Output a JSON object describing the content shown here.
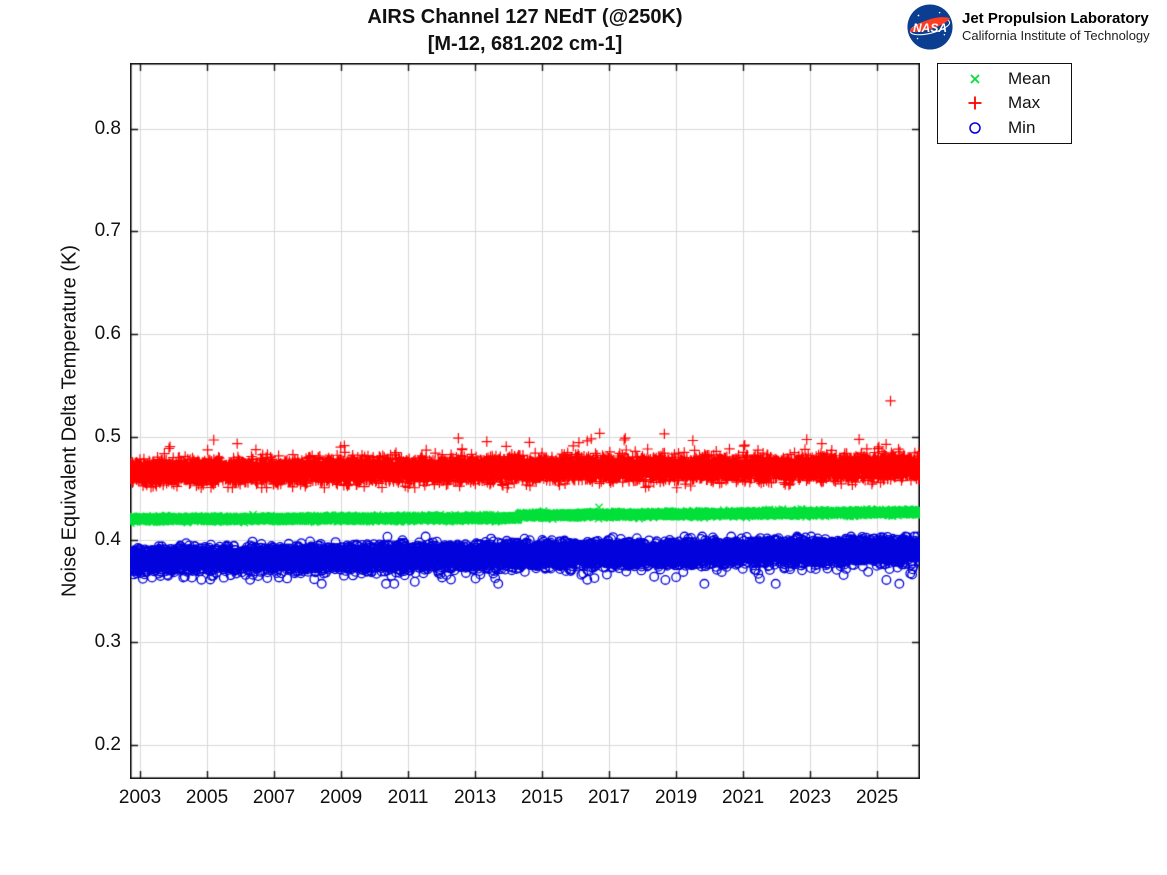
{
  "header": {
    "logo": {
      "nasa_label": "NASA",
      "org_name": "Jet Propulsion Laboratory",
      "org_sub": "California Institute of Technology",
      "meatball_blue": "#0B3D91",
      "swoosh_red": "#FC3D21"
    }
  },
  "chart_data": {
    "type": "scatter",
    "title": "AIRS Channel 127 NEdT (@250K)",
    "subtitle": "[M-12, 681.202 cm-1]",
    "xlabel": "",
    "ylabel": "Noise Equivalent Delta Temperature (K)",
    "xlim": [
      2002.7,
      2026.28
    ],
    "ylim": [
      0.167,
      0.864
    ],
    "x_ticks": [
      2003,
      2005,
      2007,
      2009,
      2011,
      2013,
      2015,
      2017,
      2019,
      2021,
      2023,
      2025
    ],
    "y_ticks": [
      0.2,
      0.3,
      0.4,
      0.5,
      0.6,
      0.7,
      0.8
    ],
    "y_tick_decimals": 1,
    "grid": true,
    "grid_color": "#D9D9D9",
    "axis_color": "#111111",
    "tick_length": 7,
    "legend": {
      "position": "outside-top-right"
    },
    "points_per_year": 365,
    "seed": 42,
    "series": [
      {
        "name": "Mean",
        "marker": "x",
        "color": "#00E038",
        "marker_size": 3.6,
        "line_width": 1.3,
        "model": {
          "segments": [
            {
              "from": 2002.7,
              "to": 2014.3,
              "base": 0.4199,
              "slope": 0.0001
            },
            {
              "from": 2014.3,
              "to": 2026.28,
              "base": 0.4236,
              "slope": 0.00026
            }
          ],
          "sigma": 0.0012,
          "clip": [
            0.415,
            0.43
          ]
        },
        "outliers": [
          [
            2016.7,
            0.4315
          ]
        ]
      },
      {
        "name": "Max",
        "marker": "+",
        "color": "#FF0000",
        "marker_size": 5.2,
        "line_width": 1.2,
        "model": {
          "segments": [
            {
              "from": 2002.7,
              "to": 2026.28,
              "base": 0.466,
              "slope": 0.0002
            }
          ],
          "sigma": 0.0055,
          "tail": {
            "p": 0.018,
            "scale": 0.011,
            "sign": 1
          },
          "clip": [
            0.4505,
            0.5035
          ]
        },
        "outliers": [
          [
            2005.2,
            0.497
          ],
          [
            2005.9,
            0.4935
          ],
          [
            2009.1,
            0.4915
          ],
          [
            2013.35,
            0.4955
          ],
          [
            2016.1,
            0.4945
          ],
          [
            2017.45,
            0.497
          ],
          [
            2018.65,
            0.503
          ],
          [
            2019.5,
            0.4965
          ],
          [
            2021.05,
            0.492
          ],
          [
            2022.9,
            0.4975
          ],
          [
            2023.35,
            0.4935
          ],
          [
            2025.4,
            0.535
          ]
        ]
      },
      {
        "name": "Min",
        "marker": "o",
        "color": "#0202DC",
        "marker_size": 4.3,
        "line_width": 1.3,
        "model": {
          "segments": [
            {
              "from": 2002.7,
              "to": 2026.28,
              "base": 0.38,
              "slope": 0.00042
            }
          ],
          "sigma": 0.0056,
          "tail": {
            "p": 0.045,
            "scale": 0.009,
            "sign": -1
          },
          "clip": [
            0.357,
            0.403
          ]
        },
        "outliers": [
          [
            2005.5,
            0.363
          ],
          [
            2008.2,
            0.3615
          ],
          [
            2011.2,
            0.359
          ],
          [
            2013.6,
            0.3625
          ],
          [
            2016.35,
            0.361
          ],
          [
            2019.0,
            0.3635
          ],
          [
            2021.5,
            0.362
          ],
          [
            2024.0,
            0.3655
          ]
        ]
      }
    ]
  }
}
